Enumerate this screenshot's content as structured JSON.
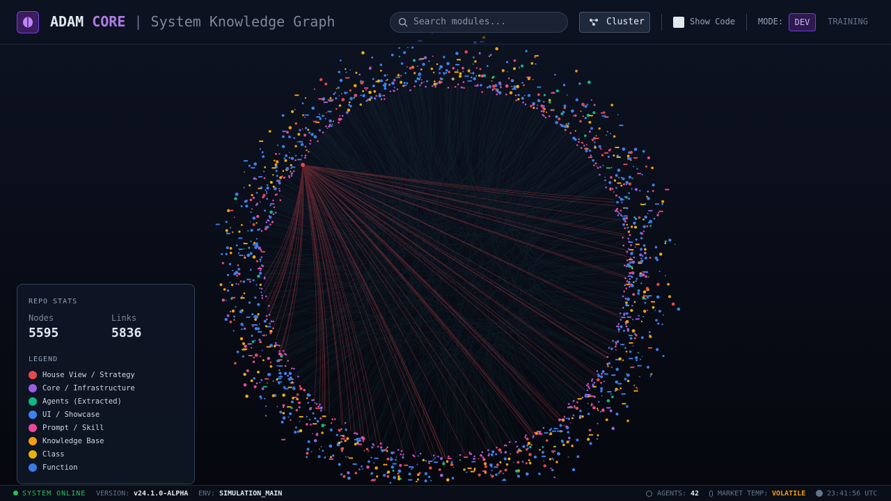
{
  "header": {
    "title_main": "ADAM",
    "title_accent": "CORE",
    "separator": "|",
    "subtitle": "System Knowledge Graph",
    "search_placeholder": "Search modules...",
    "cluster_button": "Cluster",
    "show_code": "Show Code",
    "mode_label": "MODE:",
    "modes": [
      "DEV",
      "TRAINING"
    ]
  },
  "stats": {
    "title": "REPO STATS",
    "nodes_label": "Nodes",
    "nodes": 5595,
    "links_label": "Links",
    "links": 5836
  },
  "legend": {
    "title": "LEGEND",
    "items": [
      {
        "label": "House View / Strategy",
        "color": "#e5484d"
      },
      {
        "label": "Core / Infrastructure",
        "color": "#9b5de5"
      },
      {
        "label": "Agents (Extracted)",
        "color": "#10b981"
      },
      {
        "label": "UI / Showcase",
        "color": "#3b82f6"
      },
      {
        "label": "Prompt / Skill",
        "color": "#ec4899"
      },
      {
        "label": "Knowledge Base",
        "color": "#f59e0b"
      },
      {
        "label": "Class",
        "color": "#eab308"
      },
      {
        "label": "Function",
        "color": "#3b7be6"
      }
    ]
  },
  "footer": {
    "status": "SYSTEM ONLINE",
    "version_label": "VERSION:",
    "version": "v24.1.0-ALPHA",
    "env_label": "ENV:",
    "env": "SIMULATION_MAIN",
    "agents_label": "AGENTS:",
    "agents": 42,
    "market_label": "MARKET TEMP:",
    "market": "VOLATILE",
    "time": "23:41:56 UTC"
  }
}
